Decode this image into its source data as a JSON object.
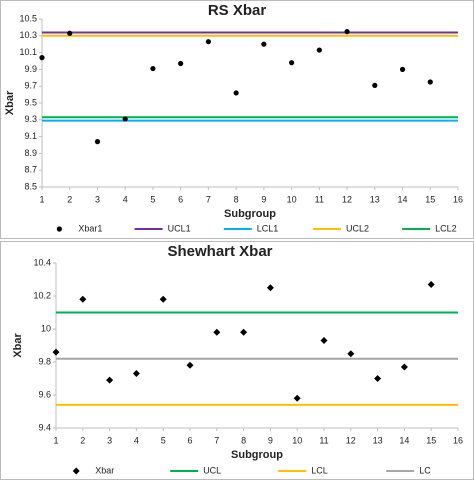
{
  "chart_data": [
    {
      "type": "scatter",
      "title": "RS Xbar",
      "x_label": "Subgroup",
      "y_label": "Xbar",
      "x": [
        1,
        2,
        3,
        4,
        5,
        6,
        7,
        8,
        9,
        10,
        11,
        12,
        13,
        14,
        15
      ],
      "series": [
        {
          "name": "Xbar1",
          "color": "#000000",
          "marker": "circle",
          "values": [
            10.04,
            10.33,
            9.04,
            9.31,
            9.91,
            9.97,
            10.23,
            9.62,
            10.2,
            9.98,
            10.13,
            10.35,
            9.71,
            9.9,
            9.75
          ]
        }
      ],
      "hlines": [
        {
          "name": "UCL1",
          "color": "#7030a0",
          "value": 10.34
        },
        {
          "name": "LCL1",
          "color": "#00b0f0",
          "value": 9.29
        },
        {
          "name": "UCL2",
          "color": "#ffc000",
          "value": 10.3
        },
        {
          "name": "LCL2",
          "color": "#00b050",
          "value": 9.33
        }
      ],
      "xlim": [
        1,
        16
      ],
      "xticks": [
        1,
        2,
        3,
        4,
        5,
        6,
        7,
        8,
        9,
        10,
        11,
        12,
        13,
        14,
        15,
        16
      ],
      "ylim": [
        8.5,
        10.5
      ],
      "yticks": [
        8.5,
        8.7,
        8.9,
        9.1,
        9.3,
        9.5,
        9.7,
        9.9,
        10.1,
        10.3,
        10.5
      ]
    },
    {
      "type": "scatter",
      "title": "Shewhart Xbar",
      "x_label": "Subgroup",
      "y_label": "Xbar",
      "x": [
        1,
        2,
        3,
        4,
        5,
        6,
        7,
        8,
        9,
        10,
        11,
        12,
        13,
        14,
        15
      ],
      "series": [
        {
          "name": "Xbar",
          "color": "#000000",
          "marker": "diamond",
          "values": [
            9.86,
            10.18,
            9.69,
            9.73,
            10.18,
            9.78,
            9.98,
            9.98,
            10.25,
            9.58,
            9.93,
            9.85,
            9.7,
            9.77,
            10.27
          ]
        }
      ],
      "hlines": [
        {
          "name": "UCL",
          "color": "#00b050",
          "value": 10.1
        },
        {
          "name": "LCL",
          "color": "#ffc000",
          "value": 9.54
        },
        {
          "name": "LC",
          "color": "#a6a6a6",
          "value": 9.82
        }
      ],
      "xlim": [
        1,
        16
      ],
      "xticks": [
        1,
        2,
        3,
        4,
        5,
        6,
        7,
        8,
        9,
        10,
        11,
        12,
        13,
        14,
        15,
        16
      ],
      "ylim": [
        9.4,
        10.4
      ],
      "yticks": [
        9.4,
        9.6,
        9.8,
        10,
        10.2,
        10.4
      ]
    }
  ]
}
